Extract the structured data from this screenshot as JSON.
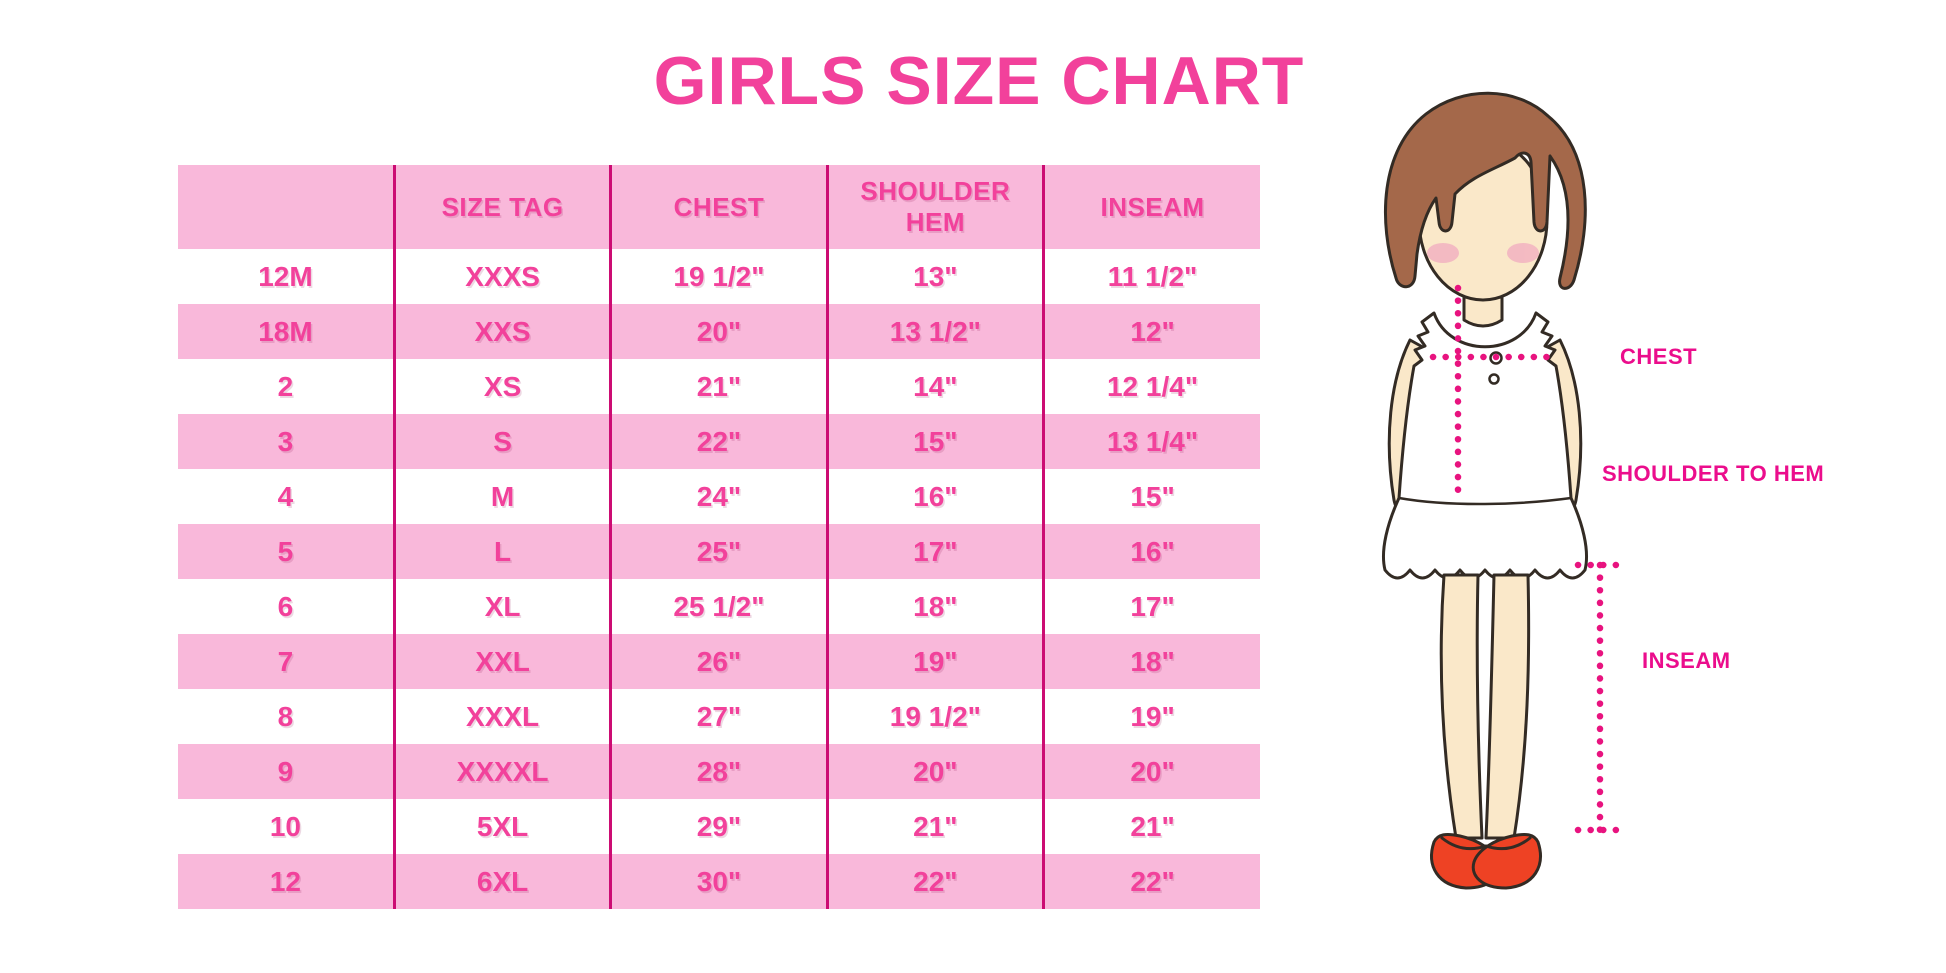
{
  "chart_data": {
    "type": "table",
    "title": "GIRLS SIZE CHART",
    "columns": [
      "",
      "SIZE TAG",
      "CHEST",
      "SHOULDER HEM",
      "INSEAM"
    ],
    "rows": [
      [
        "12M",
        "XXXS",
        "19 1/2\"",
        "13\"",
        "11 1/2\""
      ],
      [
        "18M",
        "XXS",
        "20\"",
        "13 1/2\"",
        "12\""
      ],
      [
        "2",
        "XS",
        "21\"",
        "14\"",
        "12 1/4\""
      ],
      [
        "3",
        "S",
        "22\"",
        "15\"",
        "13 1/4\""
      ],
      [
        "4",
        "M",
        "24\"",
        "16\"",
        "15\""
      ],
      [
        "5",
        "L",
        "25\"",
        "17\"",
        "16\""
      ],
      [
        "6",
        "XL",
        "25 1/2\"",
        "18\"",
        "17\""
      ],
      [
        "7",
        "XXL",
        "26\"",
        "19\"",
        "18\""
      ],
      [
        "8",
        "XXXL",
        "27\"",
        "19 1/2\"",
        "19\""
      ],
      [
        "9",
        "XXXXL",
        "28\"",
        "20\"",
        "20\""
      ],
      [
        "10",
        "5XL",
        "29\"",
        "21\"",
        "21\""
      ],
      [
        "12",
        "6XL",
        "30\"",
        "22\"",
        "22\""
      ]
    ],
    "annotations": [
      "CHEST",
      "SHOULDER TO HEM",
      "INSEAM"
    ]
  },
  "figure": {
    "labels": {
      "chest": "CHEST",
      "shoulder_to_hem": "SHOULDER TO HEM",
      "inseam": "INSEAM"
    }
  },
  "colors": {
    "accent_pink": "#F2419B",
    "row_pink": "#F9B8DA",
    "divider_pink": "#CC0C73",
    "label_magenta": "#EB0D8C",
    "dotted_magenta": "#E8137F",
    "hair_brown": "#A4684A",
    "skin": "#FAE8C9",
    "cheek": "#F2B3C1",
    "shoe_red": "#EE4224",
    "outline_dark": "#332B24"
  }
}
